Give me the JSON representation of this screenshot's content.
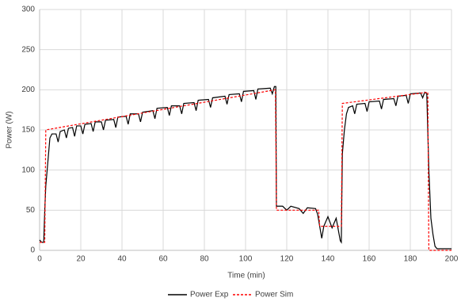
{
  "chart_data": {
    "type": "line",
    "x_label": "Time (min)",
    "y_label": "Power (W)",
    "xlim": [
      0,
      200
    ],
    "ylim": [
      0,
      300
    ],
    "xticks": [
      0,
      20,
      40,
      60,
      80,
      100,
      120,
      140,
      160,
      180,
      200
    ],
    "yticks": [
      0,
      50,
      100,
      150,
      200,
      250,
      300
    ],
    "grid": true,
    "legend": "bottom",
    "series": [
      {
        "name": "Power Exp",
        "color": "#000000",
        "dash": false,
        "x": [
          0,
          1,
          2,
          2.5,
          3,
          4,
          5,
          6,
          8,
          9,
          10,
          12,
          13,
          14,
          16,
          17,
          18,
          20,
          21,
          22,
          25,
          26,
          27,
          30,
          31,
          32,
          36,
          37,
          38,
          42,
          43,
          44,
          48,
          49,
          50,
          55,
          56,
          57,
          62,
          63,
          64,
          68,
          69,
          70,
          75,
          76,
          77,
          82,
          83,
          84,
          90,
          91,
          92,
          97,
          98,
          99,
          104,
          105,
          106,
          112,
          113,
          114,
          114.7,
          115,
          118,
          120,
          122,
          126,
          128,
          130,
          134,
          135,
          136,
          137,
          138,
          140,
          142,
          144,
          146,
          146.5,
          147,
          148,
          149,
          150,
          152,
          153,
          154,
          158,
          159,
          160,
          165,
          166,
          167,
          172,
          173,
          174,
          178,
          179,
          180,
          185,
          186,
          187,
          188,
          189,
          190,
          191,
          192,
          193,
          200
        ],
        "values": [
          13,
          10,
          10,
          50,
          80,
          110,
          140,
          145,
          145,
          135,
          148,
          150,
          140,
          152,
          153,
          142,
          155,
          155,
          145,
          157,
          158,
          148,
          160,
          160,
          150,
          162,
          163,
          153,
          166,
          167,
          157,
          170,
          170,
          160,
          172,
          174,
          164,
          177,
          178,
          168,
          180,
          180,
          170,
          183,
          184,
          174,
          187,
          188,
          178,
          190,
          192,
          182,
          194,
          195,
          185,
          198,
          199,
          188,
          201,
          202,
          195,
          204,
          204,
          55,
          55,
          50,
          55,
          52,
          46,
          53,
          52,
          45,
          30,
          15,
          30,
          42,
          28,
          40,
          12,
          10,
          120,
          150,
          170,
          178,
          180,
          170,
          182,
          183,
          173,
          185,
          186,
          176,
          188,
          189,
          180,
          192,
          193,
          183,
          195,
          196,
          190,
          197,
          195,
          100,
          40,
          20,
          5,
          2,
          2
        ]
      },
      {
        "name": "Power Sim",
        "color": "#ff0000",
        "dash": true,
        "x": [
          0,
          2.5,
          3,
          114.5,
          115,
          135.5,
          136,
          146.5,
          147,
          188.5,
          189,
          200
        ],
        "values": [
          10,
          10,
          150,
          200,
          50,
          50,
          30,
          30,
          183,
          197,
          0,
          0
        ]
      }
    ]
  }
}
